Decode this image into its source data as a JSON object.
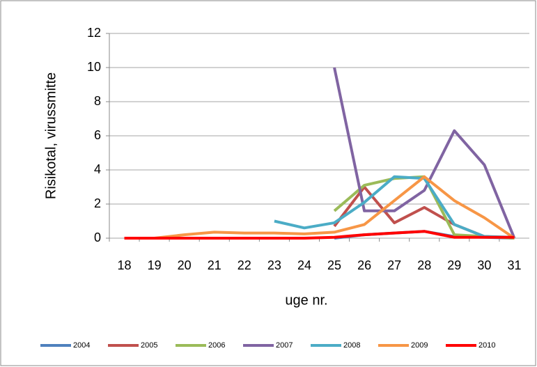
{
  "chart_data": {
    "type": "line",
    "x_label": "uge nr.",
    "y_label": "Risikotal, virussmitte",
    "categories": [
      "18",
      "19",
      "20",
      "21",
      "22",
      "23",
      "24",
      "25",
      "26",
      "27",
      "28",
      "29",
      "30",
      "31"
    ],
    "ylim": [
      0,
      12
    ],
    "yticks": [
      0,
      2,
      4,
      6,
      8,
      10,
      12
    ],
    "grid": true,
    "legend": "bottom",
    "series": [
      {
        "name": "2004",
        "color": "#4f81bd",
        "values": [
          null,
          null,
          null,
          null,
          null,
          null,
          null,
          0,
          0.2,
          0.3,
          0.4,
          0.1,
          0.05,
          0
        ]
      },
      {
        "name": "2005",
        "color": "#c0504d",
        "values": [
          null,
          null,
          null,
          null,
          null,
          null,
          null,
          0.7,
          3.0,
          0.9,
          1.8,
          0.8,
          0.1,
          0
        ]
      },
      {
        "name": "2006",
        "color": "#9bbb59",
        "values": [
          null,
          null,
          null,
          null,
          null,
          null,
          null,
          1.6,
          3.1,
          3.5,
          3.6,
          0.2,
          0.1,
          0
        ]
      },
      {
        "name": "2007",
        "color": "#8064a2",
        "values": [
          null,
          null,
          null,
          null,
          null,
          null,
          null,
          10,
          1.6,
          1.6,
          2.8,
          6.3,
          4.3,
          0
        ]
      },
      {
        "name": "2008",
        "color": "#4bacc6",
        "values": [
          null,
          null,
          null,
          null,
          null,
          1.0,
          0.6,
          0.9,
          2.1,
          3.6,
          3.5,
          0.8,
          0.1,
          0.05
        ]
      },
      {
        "name": "2009",
        "color": "#f79646",
        "values": [
          0,
          0,
          0.2,
          0.35,
          0.3,
          0.3,
          0.25,
          0.35,
          0.8,
          2.2,
          3.6,
          2.2,
          1.2,
          0
        ]
      },
      {
        "name": "2010",
        "color": "#ff0000",
        "values": [
          0,
          0,
          0,
          0,
          0,
          0,
          0,
          0.05,
          0.2,
          0.3,
          0.4,
          0.05,
          0.05,
          0.05
        ]
      }
    ]
  }
}
